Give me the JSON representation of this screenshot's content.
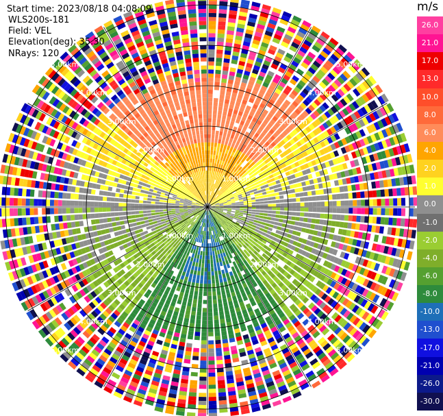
{
  "info": {
    "start_time": "Start time: 2023/08/18 04:08:09",
    "site": "WLS200s-181",
    "field": "Field: VEL",
    "elevation": "Elevation(deg): 35.30",
    "nrays": "NRays: 120"
  },
  "colorbar": {
    "unit": "m/s",
    "labels": [
      "26.0",
      "21.0",
      "17.0",
      "13.0",
      "10.0",
      "8.0",
      "6.0",
      "4.0",
      "2.0",
      "1.0",
      "0.0",
      "-1.0",
      "-2.0",
      "-4.0",
      "-6.0",
      "-8.0",
      "-10.0",
      "-13.0",
      "-17.0",
      "-21.0",
      "-26.0",
      "-30.0"
    ],
    "colors": [
      "#ff3fa0",
      "#ff1493",
      "#ee0000",
      "#ff2a2a",
      "#ff4e2a",
      "#ff6a3a",
      "#ff8c5a",
      "#ffa500",
      "#ffd21f",
      "#ffff30",
      "#8f8f8f",
      "#707070",
      "#9acd32",
      "#7fae2a",
      "#55a030",
      "#2e8b3c",
      "#1e6fb8",
      "#1f4fcf",
      "#1010e0",
      "#0000b0",
      "#0c1a8a",
      "#101050"
    ]
  },
  "range_rings": {
    "labels": [
      "1.00km",
      "2.00km",
      "3.00km",
      "4.00km",
      "5.00km"
    ],
    "label_color": "#ffffff",
    "ring_color": "#000000"
  },
  "scan": {
    "nrays": 120,
    "ngates": 52,
    "max_range_km": 5.2,
    "pattern": "hemispheric velocity dipole: positive (warm) to the north, negative (green/blue) to the south, noisy speckle beyond ~3.2 km"
  }
}
